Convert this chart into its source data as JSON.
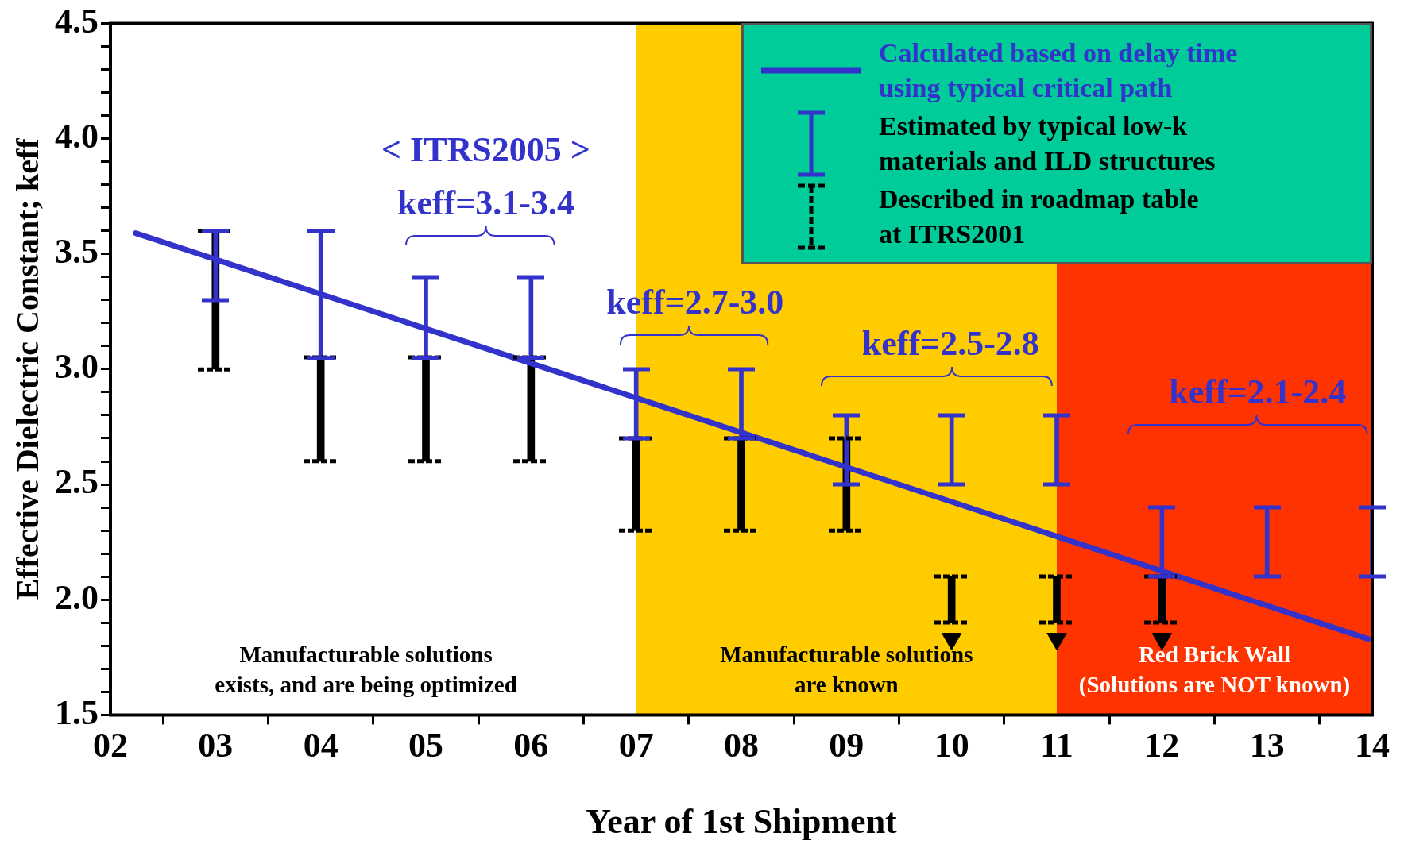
{
  "chart_data": {
    "type": "line",
    "xlabel": "Year of 1st Shipment",
    "ylabel": "Effective Dielectric Constant; keff",
    "xlim": [
      2,
      14
    ],
    "ylim": [
      1.5,
      4.5
    ],
    "xticks": [
      {
        "value": 2,
        "label": "02"
      },
      {
        "value": 3,
        "label": "03"
      },
      {
        "value": 4,
        "label": "04"
      },
      {
        "value": 5,
        "label": "05"
      },
      {
        "value": 6,
        "label": "06"
      },
      {
        "value": 7,
        "label": "07"
      },
      {
        "value": 8,
        "label": "08"
      },
      {
        "value": 9,
        "label": "09"
      },
      {
        "value": 10,
        "label": "10"
      },
      {
        "value": 11,
        "label": "11"
      },
      {
        "value": 12,
        "label": "12"
      },
      {
        "value": 13,
        "label": "13"
      },
      {
        "value": 14,
        "label": "14"
      }
    ],
    "yticks": [
      1.5,
      {
        "value": 1.6,
        "label": null
      },
      {
        "value": 1.7,
        "label": null
      },
      {
        "value": 1.8,
        "label": null
      },
      {
        "value": 1.9,
        "label": null
      },
      {
        "value": 2,
        "label": "2.0"
      },
      {
        "value": 2.1,
        "label": null
      },
      {
        "value": 2.2,
        "label": null
      },
      {
        "value": 2.3,
        "label": null
      },
      {
        "value": 2.4,
        "label": null
      },
      2.5,
      {
        "value": 2.6,
        "label": null
      },
      {
        "value": 2.7,
        "label": null
      },
      {
        "value": 2.8,
        "label": null
      },
      {
        "value": 2.9,
        "label": null
      },
      {
        "value": 3,
        "label": "3.0"
      },
      {
        "value": 3.1,
        "label": null
      },
      {
        "value": 3.2,
        "label": null
      },
      {
        "value": 3.3,
        "label": null
      },
      {
        "value": 3.4,
        "label": null
      },
      3.5,
      {
        "value": 3.6,
        "label": null
      },
      {
        "value": 3.7,
        "label": null
      },
      {
        "value": 3.8,
        "label": null
      },
      {
        "value": 3.9,
        "label": null
      },
      {
        "value": 4,
        "label": "4.0"
      },
      {
        "value": 4.1,
        "label": null
      },
      {
        "value": 4.2,
        "label": null
      },
      {
        "value": 4.3,
        "label": null
      },
      {
        "value": 4.4,
        "label": null
      },
      4.5
    ],
    "grid": false,
    "legend": "top right",
    "series": [
      {
        "name": "Calculated based on delay time\nusing typical critical path",
        "color": "#3333cc",
        "x": [
          2.24,
          13.96
        ],
        "values": [
          3.59,
          1.83
        ]
      },
      {
        "type": "bar",
        "name": "Estimated by typical low-k\nmaterials and ILD structures",
        "color": "#3333cc",
        "x": [
          3,
          4,
          5,
          6,
          7,
          8,
          9,
          10,
          11,
          12,
          13,
          14
        ],
        "base": [
          3.3,
          3.05,
          3.05,
          3.05,
          2.7,
          2.7,
          2.5,
          2.5,
          2.5,
          2.1,
          2.1,
          2.1
        ],
        "values": [
          0.3,
          0.55,
          0.35,
          0.35,
          0.3,
          0.3,
          0.3,
          0.3,
          0.3,
          0.3,
          0.3,
          0.3
        ]
      },
      {
        "type": "bar",
        "name": "Described in roadmap table\nat ITRS2001",
        "color": "#000000",
        "line_style": "dotted",
        "x": [
          3,
          4,
          5,
          6,
          7,
          8,
          9,
          10,
          11,
          12
        ],
        "base": [
          3.0,
          2.6,
          2.6,
          2.6,
          2.3,
          2.3,
          2.3,
          1.9,
          1.9,
          1.9
        ],
        "values": [
          0.6,
          0.45,
          0.45,
          0.45,
          0.4,
          0.4,
          0.4,
          0.2,
          0.2,
          0.2
        ]
      },
      {
        "type": "scatter",
        "marker": "triangle",
        "color": "#000000",
        "x": [
          10,
          11,
          12
        ],
        "values": [
          1.83,
          1.83,
          1.83
        ]
      }
    ],
    "bands": [
      {
        "axis": "x",
        "from": 7,
        "to": 11,
        "color": "#ffcc00",
        "label": "Manufacturable solutions\nare known"
      },
      {
        "axis": "x",
        "from": 11,
        "to": 14,
        "color": "#ff3300",
        "label": "Red Brick Wall\n(Solutions are NOT known)"
      }
    ],
    "annotations": [
      "< ITRS2005 >",
      "keff=3.1-3.4",
      "keff=2.7-3.0",
      "keff=2.5-2.8",
      "keff=2.1-2.4",
      "Manufacturable solutions\nexists, and are being optimized"
    ]
  }
}
